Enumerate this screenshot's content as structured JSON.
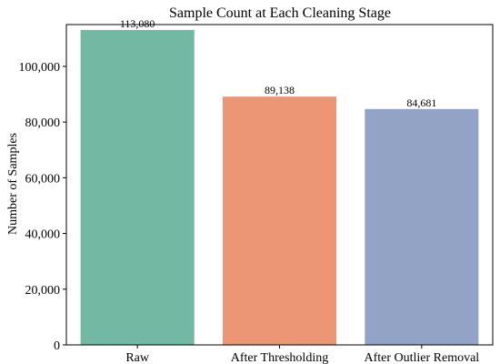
{
  "chart_data": {
    "type": "bar",
    "title": "Sample Count at Each Cleaning Stage",
    "xlabel": "",
    "ylabel": "Number of Samples",
    "categories": [
      "Raw",
      "After Thresholding",
      "After Outlier Removal"
    ],
    "values": [
      113080,
      89138,
      84681
    ],
    "data_labels": [
      "113,080",
      "89,138",
      "84,681"
    ],
    "colors": [
      "#73b8a2",
      "#ec9675",
      "#93a3c6"
    ],
    "ylim": [
      0,
      115000
    ],
    "yticks": [
      0,
      20000,
      40000,
      60000,
      80000,
      100000
    ],
    "ytick_labels": [
      "0",
      "20,000",
      "40,000",
      "60,000",
      "80,000",
      "100,000"
    ],
    "grid": false,
    "legend": "none"
  }
}
